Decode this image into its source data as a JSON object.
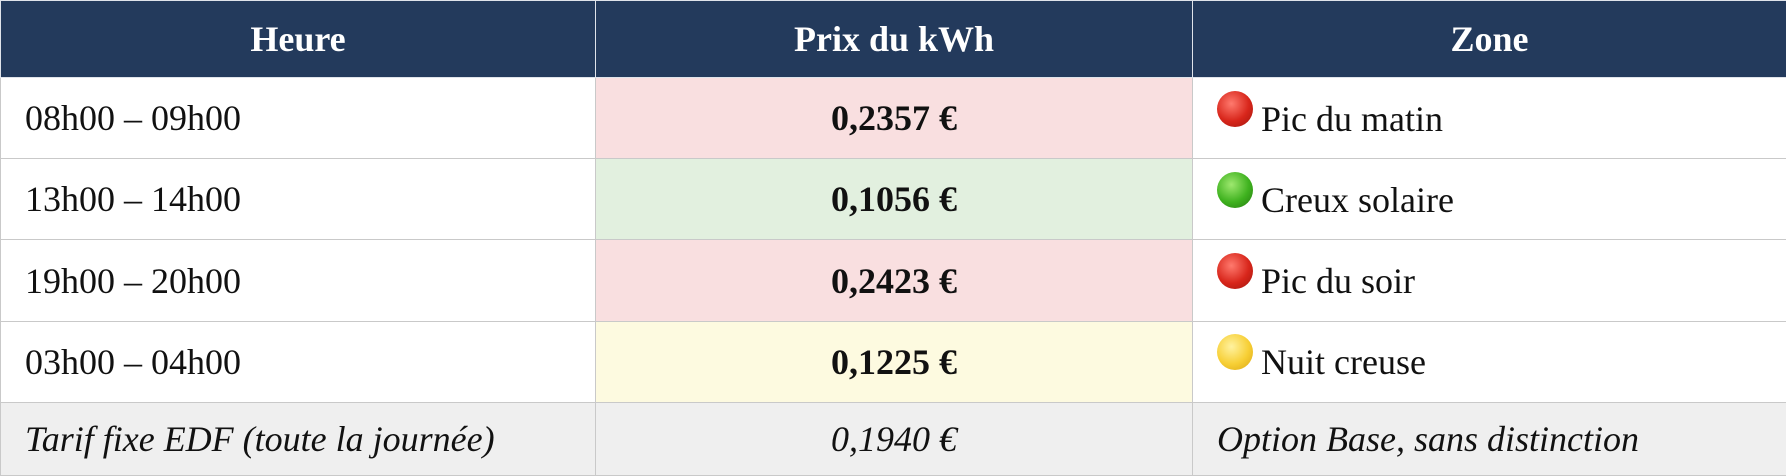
{
  "table": {
    "header": [
      "Heure",
      "Prix du kWh",
      "Zone"
    ],
    "rows": [
      [
        "08h00 – 09h00",
        "0,2357 €",
        "Pic du matin"
      ],
      [
        "13h00 – 14h00",
        "0,1056 €",
        "Creux solaire"
      ],
      [
        "19h00 – 20h00",
        "0,2423 €",
        "Pic du soir"
      ],
      [
        "03h00 – 04h00",
        "0,1225 €",
        "Nuit creuse"
      ]
    ],
    "footer": [
      "Tarif fixe EDF (toute la journée)",
      "0,1940 €",
      "Option Base, sans distinction"
    ]
  }
}
